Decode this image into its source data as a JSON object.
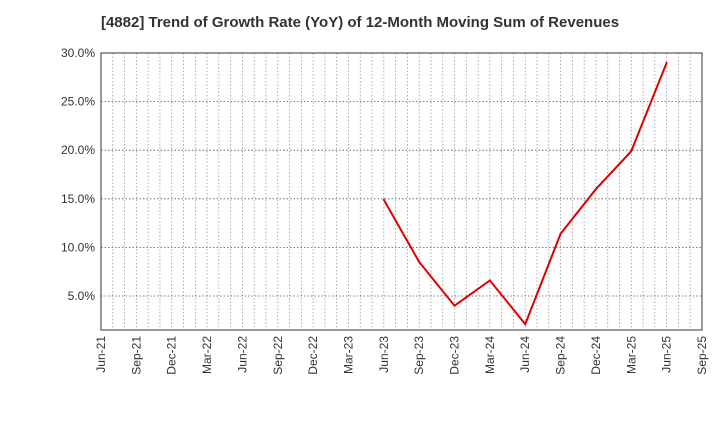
{
  "chart_data": {
    "type": "line",
    "title": "[4882]  Trend of Growth Rate (YoY) of 12-Month Moving Sum of Revenues",
    "xlabel": "",
    "ylabel": "",
    "x_tick_labels": [
      "Jun-21",
      "Sep-21",
      "Dec-21",
      "Mar-22",
      "Jun-22",
      "Sep-22",
      "Dec-22",
      "Mar-23",
      "Jun-23",
      "Sep-23",
      "Dec-23",
      "Mar-24",
      "Jun-24",
      "Sep-24",
      "Dec-24",
      "Mar-25",
      "Jun-25",
      "Sep-25"
    ],
    "y_tick_labels": [
      "5.0%",
      "10.0%",
      "15.0%",
      "20.0%",
      "25.0%",
      "30.0%"
    ],
    "y_ticks": [
      5,
      10,
      15,
      20,
      25,
      30
    ],
    "ylim": [
      1.5,
      30
    ],
    "x_range_months": [
      "2021-06",
      "2025-09"
    ],
    "grid": true,
    "series": [
      {
        "color": "#dd0000",
        "points": [
          {
            "x": "2023-06",
            "y": 14.9
          },
          {
            "x": "2023-09",
            "y": 8.5
          },
          {
            "x": "2023-12",
            "y": 4.0
          },
          {
            "x": "2024-03",
            "y": 6.6
          },
          {
            "x": "2024-06",
            "y": 2.1
          },
          {
            "x": "2024-09",
            "y": 11.4
          },
          {
            "x": "2024-12",
            "y": 16.0
          },
          {
            "x": "2025-03",
            "y": 19.9
          },
          {
            "x": "2025-06",
            "y": 29.0
          }
        ]
      }
    ]
  }
}
